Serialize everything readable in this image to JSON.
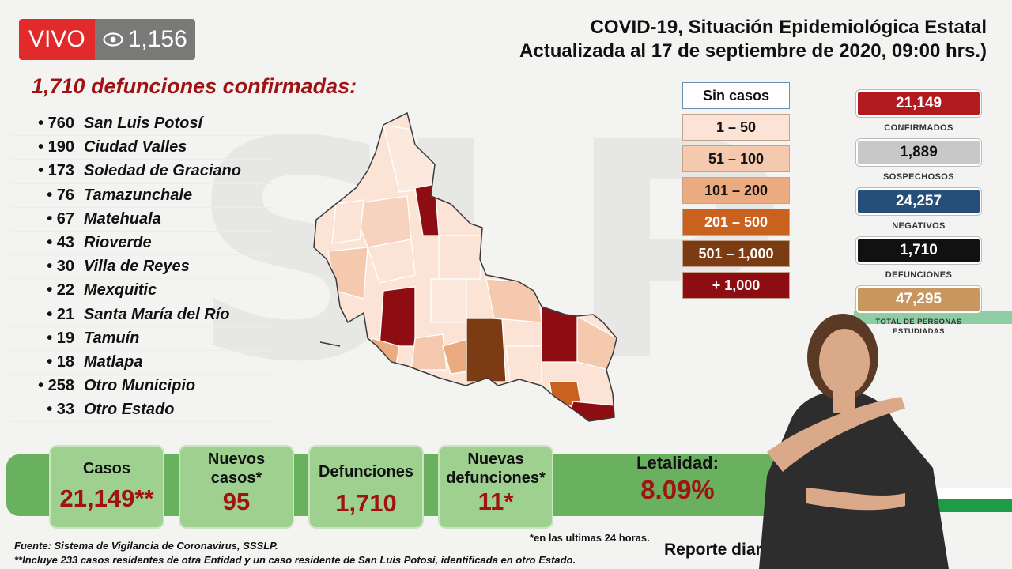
{
  "stream": {
    "live_label": "VIVO",
    "viewer_count": "1,156",
    "eye_icon": "eye-icon"
  },
  "header": {
    "line1": "COVID-19, Situación Epidemiológica Estatal",
    "line2": "Actualizada al 17 de septiembre de 2020, 09:00 hrs.)"
  },
  "deaths": {
    "heading": "1,710 defunciones confirmadas:",
    "items": [
      {
        "count": "• 760",
        "name": "San Luis Potosí"
      },
      {
        "count": "• 190",
        "name": "Ciudad Valles"
      },
      {
        "count": "• 173",
        "name": "Soledad de Graciano"
      },
      {
        "count": "• 76",
        "name": "Tamazunchale"
      },
      {
        "count": "• 67",
        "name": "Matehuala"
      },
      {
        "count": "• 43",
        "name": "Rioverde"
      },
      {
        "count": "• 30",
        "name": "Villa de Reyes"
      },
      {
        "count": "• 22",
        "name": "Mexquitic"
      },
      {
        "count": "• 21",
        "name": "Santa María del Río"
      },
      {
        "count": "• 19",
        "name": "Tamuín"
      },
      {
        "count": "• 18",
        "name": "Matlapa"
      },
      {
        "count": "• 258",
        "name": "Otro Municipio"
      },
      {
        "count": "• 33",
        "name": "Otro Estado"
      }
    ]
  },
  "legend": {
    "items": [
      {
        "label": "Sin casos",
        "color": "#ffffff",
        "text_color": "#111111"
      },
      {
        "label": "1 – 50",
        "color": "#fbe4d6",
        "text_color": "#111111"
      },
      {
        "label": "51 – 100",
        "color": "#f5c9ae",
        "text_color": "#111111"
      },
      {
        "label": "101 – 200",
        "color": "#ecaa80",
        "text_color": "#111111"
      },
      {
        "label": "201 – 500",
        "color": "#c9621f",
        "text_color": "#ffffff"
      },
      {
        "label": "501 – 1,000",
        "color": "#7b3c14",
        "text_color": "#ffffff"
      },
      {
        "label": "+ 1,000",
        "color": "#8e0d13",
        "text_color": "#ffffff"
      }
    ]
  },
  "stats": {
    "confirmed": {
      "value": "21,149",
      "caption": "CONFIRMADOS",
      "color": "#b11a1f",
      "text_color": "#ffffff"
    },
    "suspected": {
      "value": "1,889",
      "caption": "SOSPECHOSOS",
      "color": "#c8c8c8",
      "text_color": "#111111"
    },
    "negative": {
      "value": "24,257",
      "caption": "NEGATIVOS",
      "color": "#254e78",
      "text_color": "#ffffff"
    },
    "deaths": {
      "value": "1,710",
      "caption": "DEFUNCIONES",
      "color": "#111111",
      "text_color": "#ffffff"
    },
    "studied": {
      "value": "47,295",
      "caption": "TOTAL DE PERSONAS ESTUDIADAS",
      "color": "#c8975f",
      "text_color": "#ffffff"
    }
  },
  "metrics": {
    "cases": {
      "label": "Casos",
      "value": "21,149**"
    },
    "new_cases": {
      "label": "Nuevos casos*",
      "value": "95"
    },
    "deaths": {
      "label": "Defunciones",
      "value": "1,710"
    },
    "new_deaths": {
      "label": "Nuevas defunciones*",
      "value": "11*"
    },
    "lethality": {
      "label": "Letalidad:",
      "value": "8.09%"
    }
  },
  "footer": {
    "source": "Fuente: Sistema de Vigilancia de Coronavirus, SSSLP.",
    "note": "**Incluye 233 casos residentes de otra Entidad y un caso residente de San Luis Potosí, identificada en otro Estado.",
    "last_24h": "*en las ultimas 24 horas.",
    "daily_report": "Reporte diario"
  },
  "colors": {
    "accent_red": "#a01313",
    "band_green": "#69b15f",
    "card_green": "#9ed18f"
  }
}
